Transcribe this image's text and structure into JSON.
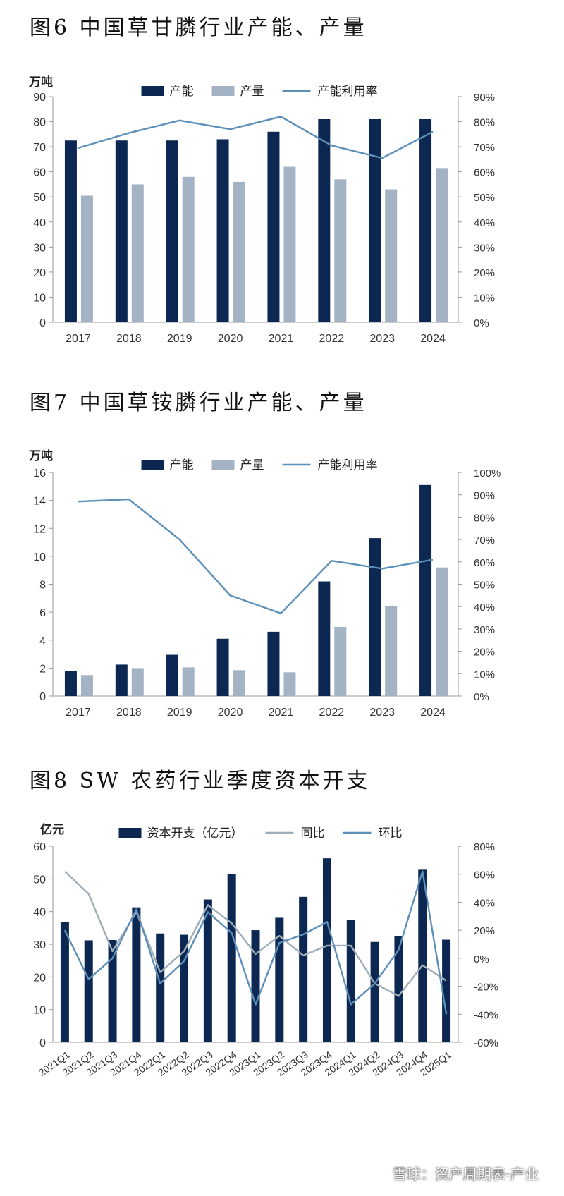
{
  "colors": {
    "capacity": "#0c2751",
    "output": "#a4b3c3",
    "rate_line": "#5d90b9",
    "yoy_line": "#9fadb8",
    "axis": "#999999"
  },
  "watermark": "雪球：资产周期表-产业",
  "chart_data": [
    {
      "id": "c6",
      "title": "图6 中国草甘膦行业产能、产量",
      "type": "bar",
      "unit_left": "万吨",
      "categories": [
        "2017",
        "2018",
        "2019",
        "2020",
        "2021",
        "2022",
        "2023",
        "2024"
      ],
      "series": [
        {
          "name": "产能",
          "kind": "bar",
          "axis": "left",
          "values": [
            72.5,
            72.5,
            72.5,
            73,
            76,
            81,
            81,
            81
          ]
        },
        {
          "name": "产量",
          "kind": "bar",
          "axis": "left",
          "values": [
            50.5,
            55,
            58,
            56,
            62,
            57,
            53,
            61.5
          ]
        },
        {
          "name": "产能利用率",
          "kind": "line",
          "axis": "right",
          "values": [
            69.5,
            75.5,
            80.5,
            77,
            82,
            70.5,
            65.5,
            76
          ]
        }
      ],
      "ylim": [
        0,
        90
      ],
      "yticks": [
        0,
        10,
        20,
        30,
        40,
        50,
        60,
        70,
        80,
        90
      ],
      "ylim_right": [
        0,
        90
      ],
      "yticks_right": [
        0,
        10,
        20,
        30,
        40,
        50,
        60,
        70,
        80,
        90
      ],
      "ytick_labels_right": [
        "0%",
        "10%",
        "20%",
        "30%",
        "40%",
        "50%",
        "60%",
        "70%",
        "80%",
        "90%"
      ],
      "grid": false,
      "legend": "top"
    },
    {
      "id": "c7",
      "title": "图7 中国草铵膦行业产能、产量",
      "type": "bar",
      "unit_left": "万吨",
      "categories": [
        "2017",
        "2018",
        "2019",
        "2020",
        "2021",
        "2022",
        "2023",
        "2024"
      ],
      "series": [
        {
          "name": "产能",
          "kind": "bar",
          "axis": "left",
          "values": [
            1.8,
            2.25,
            2.95,
            4.1,
            4.6,
            8.2,
            11.3,
            15.1
          ]
        },
        {
          "name": "产量",
          "kind": "bar",
          "axis": "left",
          "values": [
            1.5,
            2.0,
            2.05,
            1.85,
            1.7,
            4.95,
            6.45,
            9.2
          ]
        },
        {
          "name": "产能利用率",
          "kind": "line",
          "axis": "right",
          "values": [
            87,
            88,
            70,
            45,
            37,
            60.5,
            57,
            61
          ]
        }
      ],
      "ylim": [
        0,
        16
      ],
      "yticks": [
        0,
        2,
        4,
        6,
        8,
        10,
        12,
        14,
        16
      ],
      "ylim_right": [
        0,
        100
      ],
      "yticks_right": [
        0,
        10,
        20,
        30,
        40,
        50,
        60,
        70,
        80,
        90,
        100
      ],
      "ytick_labels_right": [
        "0%",
        "10%",
        "20%",
        "30%",
        "40%",
        "50%",
        "60%",
        "70%",
        "80%",
        "90%",
        "100%"
      ],
      "grid": false,
      "legend": "top"
    },
    {
      "id": "c8",
      "title": "图8 SW 农药行业季度资本开支",
      "type": "bar",
      "unit_left": "亿元",
      "categories": [
        "2021Q1",
        "2021Q2",
        "2021Q3",
        "2021Q4",
        "2022Q1",
        "2022Q2",
        "2022Q3",
        "2022Q4",
        "2023Q1",
        "2023Q2",
        "2023Q3",
        "2023Q4",
        "2024Q1",
        "2024Q2",
        "2024Q3",
        "2024Q4",
        "2025Q1"
      ],
      "series": [
        {
          "name": "资本开支（亿元）",
          "kind": "bar",
          "axis": "left",
          "values": [
            36.8,
            31.2,
            31.3,
            41.3,
            33.3,
            32.9,
            43.7,
            51.5,
            34.3,
            38.1,
            44.5,
            56.3,
            37.5,
            30.7,
            32.5,
            52.8,
            31.4
          ]
        },
        {
          "name": "同比",
          "kind": "line",
          "axis": "right",
          "values": [
            62,
            46,
            5,
            33,
            -10,
            5,
            38,
            25,
            3,
            16,
            2,
            9,
            9,
            -18,
            -27,
            -5,
            -16
          ]
        },
        {
          "name": "环比",
          "kind": "line",
          "axis": "right",
          "values": [
            20,
            -15,
            0,
            35,
            -18,
            -2,
            33,
            18,
            -33,
            11,
            17,
            26,
            -33,
            -18,
            6,
            62,
            -40
          ]
        }
      ],
      "ylim": [
        0,
        60
      ],
      "yticks": [
        0,
        10,
        20,
        30,
        40,
        50,
        60
      ],
      "ylim_right": [
        -60,
        80
      ],
      "yticks_right": [
        -60,
        -40,
        -20,
        0,
        20,
        40,
        60,
        80
      ],
      "ytick_labels_right": [
        "-60%",
        "-40%",
        "-20%",
        "0%",
        "20%",
        "40%",
        "60%",
        "80%"
      ],
      "grid": false,
      "legend": "top"
    }
  ]
}
